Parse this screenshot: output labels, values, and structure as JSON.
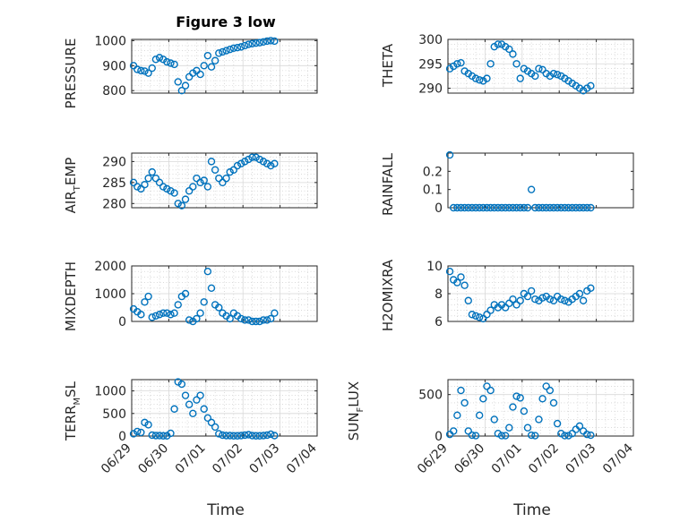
{
  "title": "Figure 3 low",
  "xlabel": "Time",
  "colors": {
    "marker": "#0072BD",
    "axis": "#262626",
    "grid": "#d0d0d0"
  },
  "chart_data": [
    {
      "type": "scatter",
      "ylabel": "PRESSURE",
      "grid": true,
      "xlim": [
        "06/29",
        "07/04"
      ],
      "xticks": [
        "06/29",
        "06/30",
        "07/01",
        "07/02",
        "07/03",
        "07/04"
      ],
      "xticklabels_shown": false,
      "ylim": [
        790,
        1005
      ],
      "yticks": [
        800,
        900,
        1000
      ],
      "x": [
        0.05,
        0.15,
        0.25,
        0.35,
        0.45,
        0.55,
        0.65,
        0.75,
        0.85,
        0.95,
        1.05,
        1.15,
        1.25,
        1.35,
        1.45,
        1.55,
        1.65,
        1.75,
        1.85,
        1.95,
        2.05,
        2.15,
        2.25,
        2.35,
        2.45,
        2.55,
        2.65,
        2.75,
        2.85,
        2.95,
        3.05,
        3.15,
        3.25,
        3.35,
        3.45,
        3.55,
        3.65,
        3.75,
        3.85
      ],
      "y": [
        900,
        885,
        880,
        878,
        870,
        890,
        925,
        932,
        925,
        915,
        910,
        905,
        835,
        800,
        820,
        855,
        870,
        880,
        865,
        900,
        940,
        895,
        920,
        950,
        955,
        960,
        965,
        970,
        972,
        975,
        980,
        985,
        988,
        990,
        992,
        995,
        998,
        1000,
        998
      ]
    },
    {
      "type": "scatter",
      "ylabel": "THETA",
      "grid": true,
      "xlim": [
        "06/29",
        "07/04"
      ],
      "xticks": [
        "06/29",
        "06/30",
        "07/01",
        "07/02",
        "07/03",
        "07/04"
      ],
      "xticklabels_shown": false,
      "ylim": [
        289,
        300
      ],
      "yticks": [
        290,
        295,
        300
      ],
      "x": [
        0.05,
        0.15,
        0.25,
        0.35,
        0.45,
        0.55,
        0.65,
        0.75,
        0.85,
        0.95,
        1.05,
        1.15,
        1.25,
        1.35,
        1.45,
        1.55,
        1.65,
        1.75,
        1.85,
        1.95,
        2.05,
        2.15,
        2.25,
        2.35,
        2.45,
        2.55,
        2.65,
        2.75,
        2.85,
        2.95,
        3.05,
        3.15,
        3.25,
        3.35,
        3.45,
        3.55,
        3.65,
        3.75,
        3.85
      ],
      "y": [
        294,
        294.5,
        295,
        295.2,
        293.5,
        293,
        292.5,
        292,
        291.7,
        291.5,
        292,
        295,
        298.5,
        299,
        299,
        298.5,
        298,
        297,
        295,
        292,
        294,
        293.5,
        293,
        292.5,
        294,
        293.8,
        293,
        292.5,
        293,
        292.8,
        292.5,
        292,
        291.5,
        291,
        290.5,
        290,
        289.5,
        290,
        290.5
      ]
    },
    {
      "type": "scatter",
      "ylabel": "AIR_TEMP",
      "grid": true,
      "xlim": [
        "06/29",
        "07/04"
      ],
      "xticks": [
        "06/29",
        "06/30",
        "07/01",
        "07/02",
        "07/03",
        "07/04"
      ],
      "xticklabels_shown": false,
      "ylim": [
        279,
        292
      ],
      "yticks": [
        280,
        285,
        290
      ],
      "x": [
        0.05,
        0.15,
        0.25,
        0.35,
        0.45,
        0.55,
        0.65,
        0.75,
        0.85,
        0.95,
        1.05,
        1.15,
        1.25,
        1.35,
        1.45,
        1.55,
        1.65,
        1.75,
        1.85,
        1.95,
        2.05,
        2.15,
        2.25,
        2.35,
        2.45,
        2.55,
        2.65,
        2.75,
        2.85,
        2.95,
        3.05,
        3.15,
        3.25,
        3.35,
        3.45,
        3.55,
        3.65,
        3.75,
        3.85
      ],
      "y": [
        285,
        284,
        283.5,
        284.5,
        286,
        287.5,
        286,
        285,
        284,
        283.5,
        283,
        282.5,
        280,
        279.5,
        281,
        283,
        284,
        286,
        285,
        285.5,
        284,
        290,
        288,
        286,
        285,
        286,
        287.5,
        288,
        289,
        289.5,
        290,
        290.5,
        291,
        291,
        290.5,
        290,
        289.5,
        289,
        289.5
      ]
    },
    {
      "type": "scatter",
      "ylabel": "RAINFALL",
      "grid": false,
      "xlim": [
        "06/29",
        "07/04"
      ],
      "xticks": [
        "06/29",
        "06/30",
        "07/01",
        "07/02",
        "07/03",
        "07/04"
      ],
      "xticklabels_shown": false,
      "ylim": [
        0,
        0.3
      ],
      "yticks": [
        0,
        0.1,
        0.2
      ],
      "x": [
        0.05,
        0.15,
        0.25,
        0.35,
        0.45,
        0.55,
        0.65,
        0.75,
        0.85,
        0.95,
        1.05,
        1.15,
        1.25,
        1.35,
        1.45,
        1.55,
        1.65,
        1.75,
        1.85,
        1.95,
        2.05,
        2.15,
        2.25,
        2.35,
        2.45,
        2.55,
        2.65,
        2.75,
        2.85,
        2.95,
        3.05,
        3.15,
        3.25,
        3.35,
        3.45,
        3.55,
        3.65,
        3.75,
        3.85
      ],
      "y": [
        0.29,
        0,
        0,
        0,
        0,
        0,
        0,
        0,
        0,
        0,
        0,
        0,
        0,
        0,
        0,
        0,
        0,
        0,
        0,
        0,
        0,
        0,
        0.1,
        0,
        0,
        0,
        0,
        0,
        0,
        0,
        0,
        0,
        0,
        0,
        0,
        0,
        0,
        0,
        0
      ]
    },
    {
      "type": "scatter",
      "ylabel": "MIXDEPTH",
      "grid": true,
      "xlim": [
        "06/29",
        "07/04"
      ],
      "xticks": [
        "06/29",
        "06/30",
        "07/01",
        "07/02",
        "07/03",
        "07/04"
      ],
      "xticklabels_shown": false,
      "ylim": [
        0,
        2000
      ],
      "yticks": [
        0,
        1000,
        2000
      ],
      "x": [
        0.05,
        0.15,
        0.25,
        0.35,
        0.45,
        0.55,
        0.65,
        0.75,
        0.85,
        0.95,
        1.05,
        1.15,
        1.25,
        1.35,
        1.45,
        1.55,
        1.65,
        1.75,
        1.85,
        1.95,
        2.05,
        2.15,
        2.25,
        2.35,
        2.45,
        2.55,
        2.65,
        2.75,
        2.85,
        2.95,
        3.05,
        3.15,
        3.25,
        3.35,
        3.45,
        3.55,
        3.65,
        3.75,
        3.85
      ],
      "y": [
        450,
        350,
        250,
        700,
        900,
        150,
        200,
        250,
        300,
        300,
        250,
        300,
        600,
        900,
        1000,
        50,
        0,
        100,
        300,
        700,
        1800,
        1200,
        600,
        500,
        300,
        200,
        100,
        300,
        200,
        100,
        50,
        50,
        0,
        0,
        0,
        50,
        50,
        100,
        300
      ]
    },
    {
      "type": "scatter",
      "ylabel": "H2OMIXRA",
      "grid": true,
      "xlim": [
        "06/29",
        "07/04"
      ],
      "xticks": [
        "06/29",
        "06/30",
        "07/01",
        "07/02",
        "07/03",
        "07/04"
      ],
      "xticklabels_shown": false,
      "ylim": [
        6,
        10
      ],
      "yticks": [
        6,
        8,
        10
      ],
      "x": [
        0.05,
        0.15,
        0.25,
        0.35,
        0.45,
        0.55,
        0.65,
        0.75,
        0.85,
        0.95,
        1.05,
        1.15,
        1.25,
        1.35,
        1.45,
        1.55,
        1.65,
        1.75,
        1.85,
        1.95,
        2.05,
        2.15,
        2.25,
        2.35,
        2.45,
        2.55,
        2.65,
        2.75,
        2.85,
        2.95,
        3.05,
        3.15,
        3.25,
        3.35,
        3.45,
        3.55,
        3.65,
        3.75,
        3.85
      ],
      "y": [
        9.6,
        9,
        8.8,
        9.2,
        8.6,
        7.5,
        6.5,
        6.4,
        6.3,
        6.2,
        6.5,
        6.8,
        7.2,
        7,
        7.2,
        7,
        7.3,
        7.6,
        7.2,
        7.5,
        8,
        7.8,
        8.2,
        7.6,
        7.5,
        7.7,
        7.8,
        7.6,
        7.5,
        7.8,
        7.6,
        7.5,
        7.4,
        7.6,
        7.8,
        8,
        7.5,
        8.2,
        8.4
      ]
    },
    {
      "type": "scatter",
      "ylabel": "TERR_MSL",
      "grid": true,
      "xlim": [
        "06/29",
        "07/04"
      ],
      "xticks": [
        "06/29",
        "06/30",
        "07/01",
        "07/02",
        "07/03",
        "07/04"
      ],
      "xticklabels_shown": true,
      "ylim": [
        0,
        1250
      ],
      "yticks": [
        0,
        500,
        1000
      ],
      "x": [
        0.05,
        0.15,
        0.25,
        0.35,
        0.45,
        0.55,
        0.65,
        0.75,
        0.85,
        0.95,
        1.05,
        1.15,
        1.25,
        1.35,
        1.45,
        1.55,
        1.65,
        1.75,
        1.85,
        1.95,
        2.05,
        2.15,
        2.25,
        2.35,
        2.45,
        2.55,
        2.65,
        2.75,
        2.85,
        2.95,
        3.05,
        3.15,
        3.25,
        3.35,
        3.45,
        3.55,
        3.65,
        3.75,
        3.85
      ],
      "y": [
        50,
        100,
        80,
        300,
        250,
        20,
        10,
        10,
        5,
        5,
        60,
        600,
        1200,
        1150,
        900,
        700,
        500,
        800,
        900,
        600,
        400,
        300,
        200,
        50,
        20,
        10,
        10,
        5,
        5,
        10,
        20,
        30,
        10,
        5,
        5,
        10,
        20,
        40,
        10
      ]
    },
    {
      "type": "scatter",
      "ylabel": "SUN_FLUX",
      "grid": true,
      "xlim": [
        "06/29",
        "07/04"
      ],
      "xticks": [
        "06/29",
        "06/30",
        "07/01",
        "07/02",
        "07/03",
        "07/04"
      ],
      "xticklabels_shown": true,
      "ylim": [
        0,
        680
      ],
      "yticks": [
        0,
        500
      ],
      "x": [
        0.05,
        0.15,
        0.25,
        0.35,
        0.45,
        0.55,
        0.65,
        0.75,
        0.85,
        0.95,
        1.05,
        1.15,
        1.25,
        1.35,
        1.45,
        1.55,
        1.65,
        1.75,
        1.85,
        1.95,
        2.05,
        2.15,
        2.25,
        2.35,
        2.45,
        2.55,
        2.65,
        2.75,
        2.85,
        2.95,
        3.05,
        3.15,
        3.25,
        3.35,
        3.45,
        3.55,
        3.65,
        3.75,
        3.85
      ],
      "y": [
        20,
        60,
        250,
        550,
        400,
        60,
        10,
        5,
        250,
        450,
        600,
        550,
        200,
        30,
        5,
        5,
        100,
        350,
        480,
        460,
        300,
        100,
        10,
        5,
        200,
        450,
        600,
        550,
        400,
        150,
        30,
        5,
        5,
        30,
        80,
        120,
        60,
        20,
        10
      ]
    }
  ]
}
